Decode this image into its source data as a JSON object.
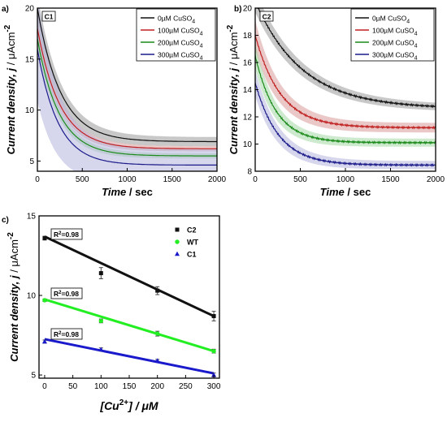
{
  "chart_data": [
    {
      "panel_label": "a)",
      "inset_label": "C1",
      "type": "line",
      "title": "",
      "xlabel_bold": "Time",
      "xlabel_unit": " / sec",
      "ylabel_parts": [
        "Current density, ",
        "j",
        " / ",
        "μAcm",
        "-2"
      ],
      "xlim": [
        0,
        2000
      ],
      "ylim": [
        4,
        20
      ],
      "xticks": [
        0,
        500,
        1000,
        1500,
        2000
      ],
      "yticks": [
        5,
        10,
        15,
        20
      ],
      "legend_position": "top-right",
      "series": [
        {
          "name": "0µM CuSO",
          "sub": "4",
          "color": "#111111",
          "shade": "#9a9a9a",
          "start": 20,
          "plateau": 6.9,
          "tau": 260,
          "band": 0.45
        },
        {
          "name": "100µM CuSO",
          "sub": "4",
          "color": "#c02020",
          "shade": "#d99a9a",
          "start": 18,
          "plateau": 6.2,
          "tau": 250,
          "band": 0.25
        },
        {
          "name": "200µM CuSO",
          "sub": "4",
          "color": "#1a8a1a",
          "shade": "#a6d9a6",
          "start": 17,
          "plateau": 5.5,
          "tau": 240,
          "band": 0.25
        },
        {
          "name": "300µM CuSO",
          "sub": "4",
          "color": "#1a1a8a",
          "shade": "#b4b4dc",
          "start": 16,
          "plateau": 4.6,
          "tau": 230,
          "band": 1.6
        }
      ]
    },
    {
      "panel_label": "b)",
      "inset_label": "C2",
      "type": "line",
      "title": "",
      "xlabel_bold": "Time",
      "xlabel_unit": " / sec",
      "ylabel_parts": [
        "Current density, ",
        "j",
        " / ",
        "μAcm",
        "-2"
      ],
      "xlim": [
        0,
        2000
      ],
      "ylim": [
        8,
        20
      ],
      "xticks": [
        0,
        500,
        1000,
        1500,
        2000
      ],
      "yticks": [
        8,
        10,
        12,
        14,
        16,
        18,
        20
      ],
      "legend_position": "top-right",
      "series": [
        {
          "name": "0µM CuSO",
          "sub": "4",
          "color": "#111111",
          "shade": "#9a9a9a",
          "start": 20.5,
          "plateau": 12.6,
          "tau": 520,
          "band": 0.25
        },
        {
          "name": "100µM CuSO",
          "sub": "4",
          "color": "#c02020",
          "shade": "#d99a9a",
          "start": 18.0,
          "plateau": 11.2,
          "tau": 280,
          "band": 0.35
        },
        {
          "name": "200µM CuSO",
          "sub": "4",
          "color": "#1a8a1a",
          "shade": "#a6d9a6",
          "start": 16.5,
          "plateau": 10.1,
          "tau": 230,
          "band": 0.3
        },
        {
          "name": "300µM CuSO",
          "sub": "4",
          "color": "#1a1a8a",
          "shade": "#b4b4dc",
          "start": 14.5,
          "plateau": 8.45,
          "tau": 260,
          "band": 0.3
        }
      ]
    },
    {
      "panel_label": "c)",
      "type": "scatter",
      "title": "",
      "xlabel_parts": [
        "[Cu",
        "2+",
        "] / μM"
      ],
      "ylabel_parts": [
        "Current density, ",
        "j",
        " / ",
        "μAcm",
        "-2"
      ],
      "xlim": [
        -10,
        310
      ],
      "ylim": [
        4.8,
        15
      ],
      "xticks": [
        0,
        50,
        100,
        150,
        200,
        250,
        300
      ],
      "yticks": [
        5,
        10,
        15
      ],
      "legend_position": "top-right",
      "series": [
        {
          "name": "C2",
          "marker": "square",
          "color": "#111111",
          "points": [
            [
              0,
              13.6
            ],
            [
              100,
              11.4
            ],
            [
              200,
              10.3
            ],
            [
              300,
              8.7
            ]
          ],
          "err": [
            0.12,
            0.35,
            0.25,
            0.3
          ],
          "fit": [
            13.7,
            8.7
          ],
          "r2_label": "R",
          "r2_sup": "2",
          "r2_value": "=0.98"
        },
        {
          "name": "WT",
          "marker": "circle",
          "color": "#22ee22",
          "points": [
            [
              0,
              9.7
            ],
            [
              100,
              8.4
            ],
            [
              200,
              7.6
            ],
            [
              300,
              6.5
            ]
          ],
          "err": [
            0.08,
            0.12,
            0.15,
            0.12
          ],
          "fit": [
            9.75,
            6.5
          ],
          "r2_label": "R",
          "r2_sup": "2",
          "r2_value": "=0.98"
        },
        {
          "name": "C1",
          "marker": "triangle",
          "color": "#1a1acc",
          "points": [
            [
              0,
              7.1
            ],
            [
              100,
              6.6
            ],
            [
              200,
              5.9
            ],
            [
              300,
              5.0
            ]
          ],
          "err": [
            0.1,
            0.1,
            0.08,
            0.12
          ],
          "fit": [
            7.25,
            5.1
          ],
          "r2_label": "R",
          "r2_sup": "2",
          "r2_value": "=0.98"
        }
      ]
    }
  ]
}
